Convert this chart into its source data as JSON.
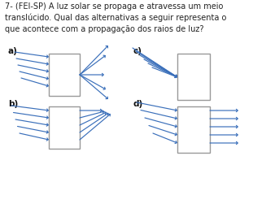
{
  "title_text": "7- (FEI-SP) A luz solar se propaga e atravessa um meio\ntranslúcido. Qual das alternativas a seguir representa o\nque acontece com a propagação dos raios de luz?",
  "bg_color": "#ffffff",
  "box_color": "#999999",
  "arrow_color": "#3a6fba",
  "labels": [
    "a)",
    "b)",
    "c)",
    "d)"
  ],
  "title_fontsize": 7.0,
  "label_fontsize": 7.5
}
